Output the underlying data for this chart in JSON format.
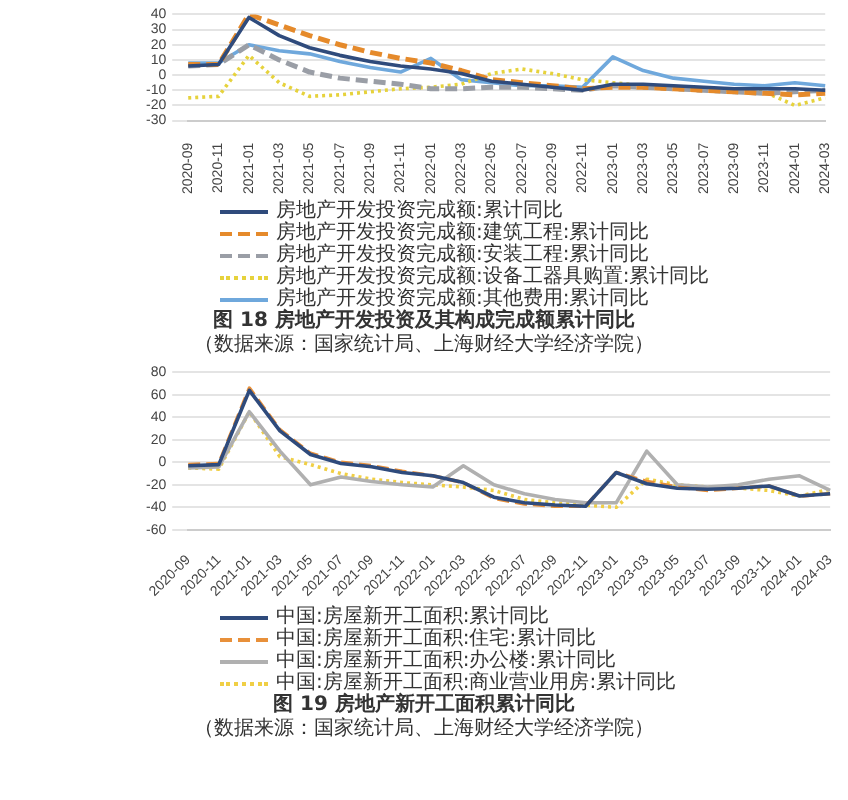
{
  "chart_data": [
    {
      "type": "line",
      "title": "图 18 房地产开发投资及其构成完成额累计同比",
      "subtitle": "（数据来源：国家统计局、上海财经大学经济学院）",
      "categories": [
        "2020-09",
        "2020-11",
        "2021-01",
        "2021-03",
        "2021-05",
        "2021-07",
        "2021-09",
        "2021-11",
        "2022-01",
        "2022-03",
        "2022-05",
        "2022-07",
        "2022-09",
        "2022-11",
        "2023-01",
        "2023-03",
        "2023-05",
        "2023-07",
        "2023-09",
        "2023-11",
        "2024-01",
        "2024-03"
      ],
      "series": [
        {
          "name": "房地产开发投资完成额:累计同比",
          "color": "#2f4b7c",
          "line_style": "solid",
          "values": [
            6,
            7,
            38,
            26,
            18,
            13,
            9,
            6,
            4,
            1,
            -4,
            -6,
            -8,
            -10,
            -6,
            -6,
            -7,
            -8,
            -9,
            -9,
            -9,
            -10
          ]
        },
        {
          "name": "房地产开发投资完成额:建筑工程:累计同比",
          "color": "#e58a2b",
          "line_style": "dashed",
          "values": [
            7,
            7,
            40,
            33,
            26,
            20,
            15,
            11,
            8,
            3,
            -3,
            -5,
            -7,
            -9,
            -8,
            -8,
            -9,
            -10,
            -11,
            -12,
            -13,
            -12
          ]
        },
        {
          "name": "房地产开发投资完成额:安装工程:累计同比",
          "color": "#9a9ea6",
          "line_style": "dashed",
          "values": [
            6,
            7,
            20,
            10,
            2,
            -2,
            -4,
            -6,
            -9,
            -9,
            -8,
            -8,
            -9,
            -10,
            -7,
            -8,
            -9,
            -10,
            -11,
            -12,
            -11,
            -10
          ]
        },
        {
          "name": "房地产开发投资完成额:设备工器具购置:累计同比",
          "color": "#e6d23c",
          "line_style": "dotted",
          "values": [
            -15,
            -14,
            13,
            -5,
            -14,
            -13,
            -11,
            -9,
            -8,
            -6,
            1,
            4,
            1,
            -3,
            -5,
            -7,
            -9,
            -10,
            -10,
            -11,
            -20,
            -15
          ]
        },
        {
          "name": "房地产开发投资完成额:其他费用:累计同比",
          "color": "#6fa8dc",
          "line_style": "solid",
          "values": [
            8,
            8,
            20,
            16,
            14,
            9,
            5,
            2,
            11,
            -3,
            -5,
            -7,
            -7,
            -8,
            12,
            3,
            -2,
            -4,
            -6,
            -7,
            -5,
            -7
          ]
        }
      ],
      "ylim": [
        -30,
        40
      ],
      "yticks": [
        -30,
        -20,
        -10,
        0,
        10,
        20,
        30,
        40
      ],
      "grid": "y",
      "legend": "bottom"
    },
    {
      "type": "line",
      "title": "图 19 房地产新开工面积累计同比",
      "subtitle": "（数据来源：国家统计局、上海财经大学经济学院）",
      "categories": [
        "2020-09",
        "2020-11",
        "2021-01",
        "2021-03",
        "2021-05",
        "2021-07",
        "2021-09",
        "2021-11",
        "2022-01",
        "2022-03",
        "2022-05",
        "2022-07",
        "2022-09",
        "2022-11",
        "2023-01",
        "2023-03",
        "2023-05",
        "2023-07",
        "2023-09",
        "2023-11",
        "2024-01",
        "2024-03"
      ],
      "series": [
        {
          "name": "中国:房屋新开工面积:累计同比",
          "color": "#2f4b7c",
          "line_style": "solid",
          "values": [
            -3,
            -2,
            64,
            28,
            7,
            -1,
            -4,
            -9,
            -12,
            -18,
            -31,
            -36,
            -38,
            -39,
            -9,
            -19,
            -23,
            -24,
            -23,
            -21,
            -30,
            -28
          ]
        },
        {
          "name": "中国:房屋新开工面积:住宅:累计同比",
          "color": "#e8903a",
          "line_style": "dashed",
          "values": [
            -2,
            -1,
            66,
            29,
            8,
            0,
            -3,
            -8,
            -12,
            -18,
            -32,
            -37,
            -39,
            -39,
            -9,
            -17,
            -22,
            -25,
            -23,
            -21,
            -30,
            -28
          ]
        },
        {
          "name": "中国:房屋新开工面积:办公楼:累计同比",
          "color": "#b0b0b0",
          "line_style": "solid",
          "values": [
            -5,
            -4,
            45,
            10,
            -20,
            -13,
            -17,
            -20,
            -22,
            -3,
            -20,
            -28,
            -33,
            -36,
            -36,
            10,
            -20,
            -22,
            -20,
            -15,
            -12,
            -25
          ]
        },
        {
          "name": "中国:房屋新开工面积:商业营业用房:累计同比",
          "color": "#f0cf45",
          "line_style": "dotted",
          "values": [
            -5,
            -6,
            45,
            5,
            -2,
            -10,
            -15,
            -18,
            -20,
            -22,
            -25,
            -33,
            -36,
            -38,
            -40,
            -15,
            -20,
            -22,
            -23,
            -25,
            -30,
            -24
          ]
        }
      ],
      "ylim": [
        -60,
        80
      ],
      "yticks": [
        -60,
        -40,
        -20,
        0,
        20,
        40,
        60,
        80
      ],
      "grid": "y",
      "legend": "bottom"
    }
  ]
}
